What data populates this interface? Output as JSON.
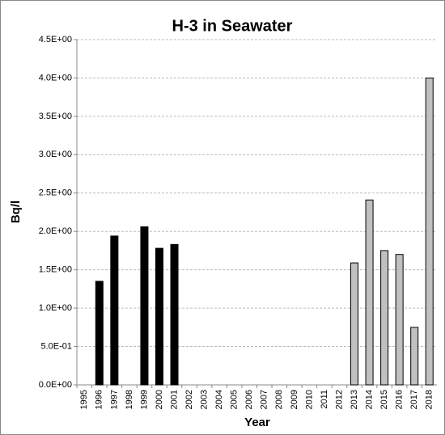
{
  "chart_data": {
    "type": "bar",
    "title": "H-3 in Seawater",
    "x_label": "Year",
    "y_label": "Bq/l",
    "categories": [
      "1995",
      "1996",
      "1997",
      "1998",
      "1999",
      "2000",
      "2001",
      "2002",
      "2003",
      "2004",
      "2005",
      "2006",
      "2007",
      "2008",
      "2009",
      "2010",
      "2011",
      "2012",
      "2013",
      "2014",
      "2015",
      "2016",
      "2017",
      "2018"
    ],
    "values": [
      null,
      1.35,
      1.94,
      null,
      2.06,
      1.78,
      1.83,
      null,
      null,
      null,
      null,
      null,
      null,
      null,
      null,
      null,
      null,
      null,
      1.59,
      2.41,
      1.75,
      1.7,
      0.75,
      4.0
    ],
    "colors": [
      null,
      "#000000",
      "#000000",
      null,
      "#000000",
      "#000000",
      "#000000",
      null,
      null,
      null,
      null,
      null,
      null,
      null,
      null,
      null,
      null,
      null,
      "#c0c0c0",
      "#c0c0c0",
      "#c0c0c0",
      "#c0c0c0",
      "#c0c0c0",
      "#c0c0c0"
    ],
    "ylim": [
      0,
      4.5
    ],
    "yticks": [
      {
        "value": 0,
        "label": "0.0E+00"
      },
      {
        "value": 0.5,
        "label": "5.0E-01"
      },
      {
        "value": 1,
        "label": "1.0E+00"
      },
      {
        "value": 1.5,
        "label": "1.5E+00"
      },
      {
        "value": 2,
        "label": "2.0E+00"
      },
      {
        "value": 2.5,
        "label": "2.5E+00"
      },
      {
        "value": 3,
        "label": "3.0E+00"
      },
      {
        "value": 3.5,
        "label": "3.5E+00"
      },
      {
        "value": 4,
        "label": "4.0E+00"
      },
      {
        "value": 4.5,
        "label": "4.5E+00"
      }
    ],
    "grid": true
  }
}
